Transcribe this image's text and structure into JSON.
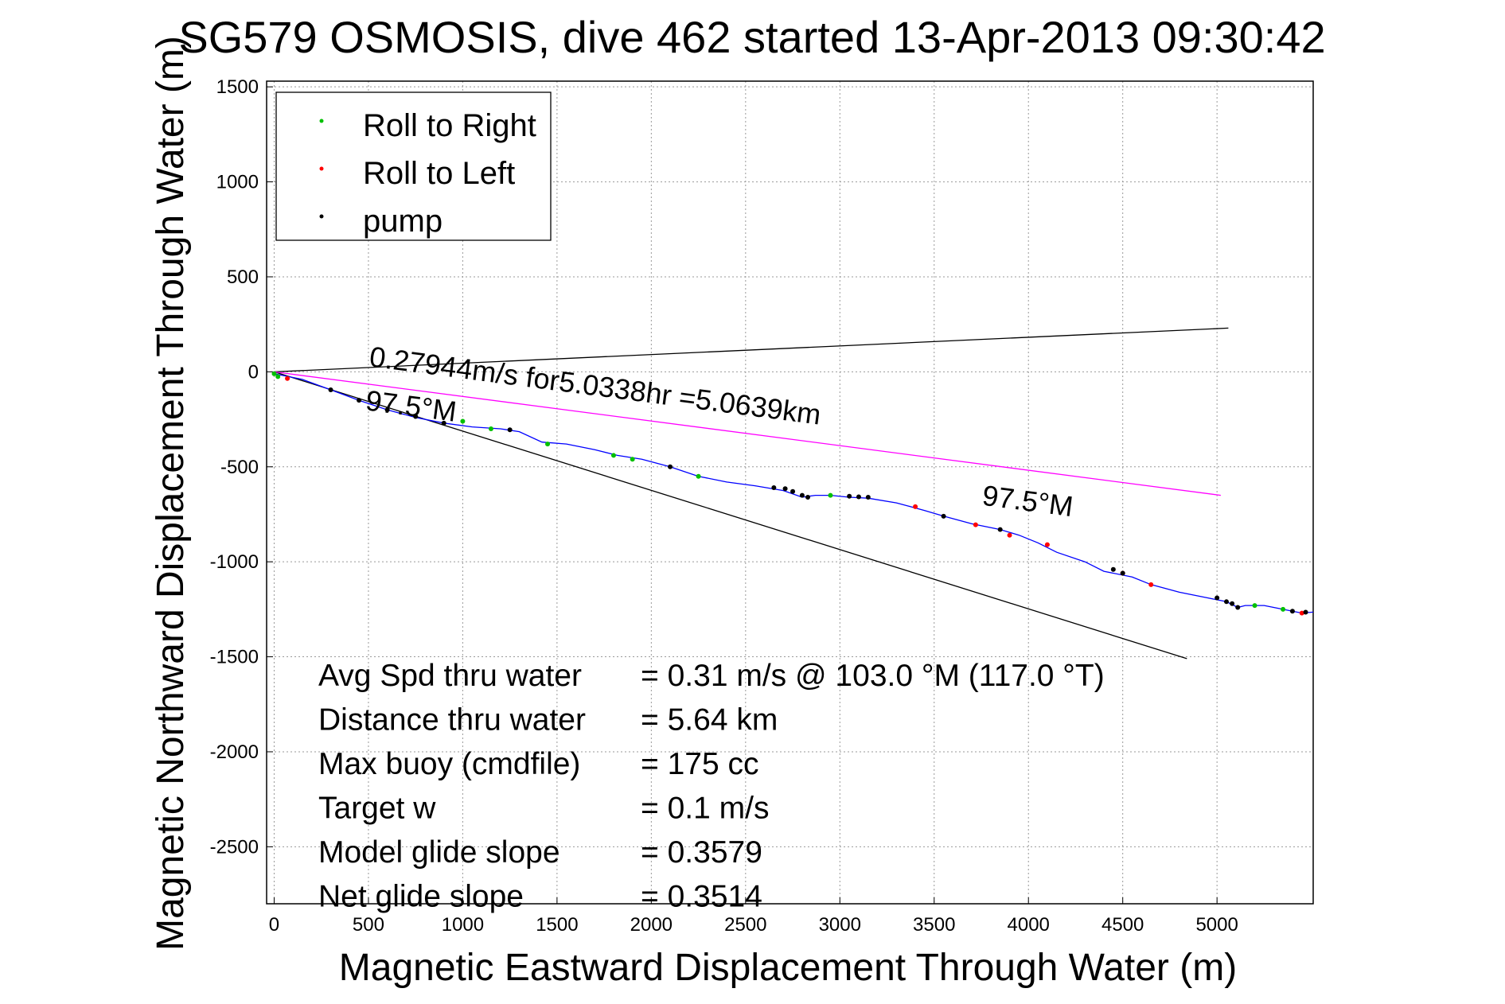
{
  "chart_data": {
    "type": "scatter",
    "title": "SG579 OSMOSIS, dive 462 started 13-Apr-2013 09:30:42",
    "xlabel": "Magnetic Eastward Displacement Through Water (m)",
    "ylabel": "Magnetic Northward Displacement Through Water (m)",
    "xlim": [
      -40,
      5510
    ],
    "ylim": [
      -2800,
      1530
    ],
    "xticks": [
      0,
      500,
      1000,
      1500,
      2000,
      2500,
      3000,
      3500,
      4000,
      4500,
      5000
    ],
    "yticks": [
      1500,
      1000,
      500,
      0,
      -500,
      -1000,
      -1500,
      -2000,
      -2500
    ],
    "grid": true,
    "legend": {
      "placement": "top-left",
      "entries": [
        {
          "name": "Roll to Right",
          "color": "#00c000"
        },
        {
          "name": "Roll to Left",
          "color": "#ff0000"
        },
        {
          "name": "pump",
          "color": "#000000"
        }
      ]
    },
    "track": {
      "color": "#0000ff",
      "points": [
        [
          0,
          -10
        ],
        [
          150,
          -40
        ],
        [
          300,
          -95
        ],
        [
          450,
          -150
        ],
        [
          600,
          -200
        ],
        [
          750,
          -240
        ],
        [
          900,
          -270
        ],
        [
          1050,
          -290
        ],
        [
          1200,
          -300
        ],
        [
          1300,
          -315
        ],
        [
          1420,
          -370
        ],
        [
          1550,
          -380
        ],
        [
          1700,
          -410
        ],
        [
          1820,
          -440
        ],
        [
          1950,
          -460
        ],
        [
          2100,
          -500
        ],
        [
          2250,
          -550
        ],
        [
          2400,
          -580
        ],
        [
          2550,
          -600
        ],
        [
          2700,
          -625
        ],
        [
          2800,
          -660
        ],
        [
          2870,
          -650
        ],
        [
          2950,
          -650
        ],
        [
          3050,
          -660
        ],
        [
          3150,
          -665
        ],
        [
          3300,
          -690
        ],
        [
          3450,
          -730
        ],
        [
          3550,
          -760
        ],
        [
          3700,
          -800
        ],
        [
          3850,
          -830
        ],
        [
          3950,
          -860
        ],
        [
          4050,
          -900
        ],
        [
          4150,
          -950
        ],
        [
          4300,
          -1000
        ],
        [
          4400,
          -1050
        ],
        [
          4550,
          -1080
        ],
        [
          4650,
          -1120
        ],
        [
          4800,
          -1160
        ],
        [
          4950,
          -1190
        ],
        [
          5050,
          -1210
        ],
        [
          5110,
          -1240
        ],
        [
          5150,
          -1230
        ],
        [
          5250,
          -1230
        ],
        [
          5350,
          -1250
        ],
        [
          5450,
          -1270
        ],
        [
          5510,
          -1265
        ]
      ]
    },
    "roll_right_points": [
      [
        0,
        -10
      ],
      [
        20,
        -25
      ],
      [
        1000,
        -260
      ],
      [
        1150,
        -300
      ],
      [
        1450,
        -380
      ],
      [
        1800,
        -440
      ],
      [
        1900,
        -460
      ],
      [
        2250,
        -550
      ],
      [
        2950,
        -650
      ],
      [
        5200,
        -1230
      ],
      [
        5350,
        -1250
      ]
    ],
    "roll_left_points": [
      [
        70,
        -35
      ],
      [
        3400,
        -710
      ],
      [
        3720,
        -805
      ],
      [
        3900,
        -860
      ],
      [
        4100,
        -910
      ],
      [
        4500,
        -1060
      ],
      [
        4650,
        -1120
      ],
      [
        5450,
        -1270
      ]
    ],
    "pump_points": [
      [
        300,
        -95
      ],
      [
        450,
        -150
      ],
      [
        600,
        -200
      ],
      [
        750,
        -235
      ],
      [
        900,
        -270
      ],
      [
        1250,
        -305
      ],
      [
        2100,
        -500
      ],
      [
        2650,
        -610
      ],
      [
        2710,
        -615
      ],
      [
        2750,
        -630
      ],
      [
        2800,
        -650
      ],
      [
        2830,
        -660
      ],
      [
        3050,
        -655
      ],
      [
        3100,
        -658
      ],
      [
        3150,
        -660
      ],
      [
        3550,
        -760
      ],
      [
        3850,
        -830
      ],
      [
        4450,
        -1040
      ],
      [
        4500,
        -1060
      ],
      [
        5000,
        -1190
      ],
      [
        5050,
        -1210
      ],
      [
        5080,
        -1220
      ],
      [
        5110,
        -1240
      ],
      [
        5400,
        -1260
      ],
      [
        5470,
        -1265
      ]
    ],
    "reference_lines": [
      {
        "color": "#000000",
        "points": [
          [
            0,
            0
          ],
          [
            5060,
            230
          ]
        ]
      },
      {
        "color": "#000000",
        "points": [
          [
            0,
            0
          ],
          [
            4840,
            -1510
          ]
        ]
      },
      {
        "color": "#ff00ff",
        "points": [
          [
            0,
            0
          ],
          [
            5020,
            -650
          ]
        ]
      }
    ],
    "annotations": [
      {
        "text": "0.27944m/s for5.0338hr =5.0639km",
        "x": 500,
        "y": 30,
        "angle": 7.4
      },
      {
        "text": "97.5°M",
        "x": 480,
        "y": -200,
        "angle": 7.4
      },
      {
        "text": "97.5°M",
        "x": 3750,
        "y": -700,
        "angle": 7.4
      }
    ],
    "stats": [
      {
        "label": "Avg Spd thru water",
        "value": "=  0.31 m/s @ 103.0 °M (117.0 °T)"
      },
      {
        "label": "Distance thru water",
        "value": "=  5.64 km"
      },
      {
        "label": "Max buoy (cmdfile)",
        "value": "= 175 cc"
      },
      {
        "label": "Target w",
        "value": "= 0.1 m/s"
      },
      {
        "label": "Model glide slope",
        "value": "= 0.3579"
      },
      {
        "label": "Net glide slope",
        "value": "= 0.3514"
      }
    ]
  }
}
